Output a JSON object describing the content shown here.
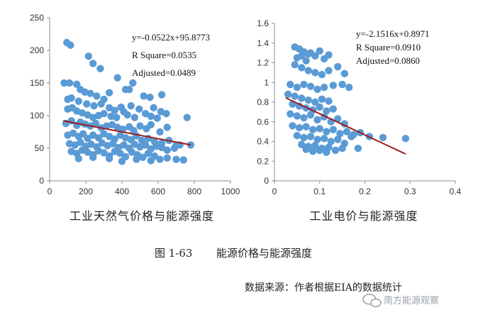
{
  "chart_data": [
    {
      "type": "scatter",
      "title": "工业天然气价格与能源强度",
      "xlim": [
        0,
        1000
      ],
      "ylim": [
        0,
        250
      ],
      "x_ticks": [
        "0",
        "200",
        "400",
        "600",
        "800",
        "1000"
      ],
      "y_ticks": [
        "0",
        "50",
        "100",
        "150",
        "200",
        "250"
      ],
      "point_color": "#5b9bd5",
      "trend_color": "#9c1a1a",
      "trendline": {
        "slope": -0.0522,
        "intercept": 95.8773,
        "x_range": [
          75,
          780
        ]
      },
      "annotation": [
        "y=-0.0522x+95.8773",
        "R Square=0.0535",
        "Adjusted=0.0489"
      ],
      "points": [
        [
          95,
          212
        ],
        [
          115,
          208
        ],
        [
          215,
          191
        ],
        [
          240,
          180
        ],
        [
          280,
          172
        ],
        [
          375,
          158
        ],
        [
          80,
          150
        ],
        [
          110,
          150
        ],
        [
          150,
          148
        ],
        [
          170,
          140
        ],
        [
          195,
          136
        ],
        [
          225,
          134
        ],
        [
          260,
          130
        ],
        [
          300,
          125
        ],
        [
          330,
          135
        ],
        [
          420,
          140
        ],
        [
          440,
          140
        ],
        [
          460,
          150
        ],
        [
          520,
          130
        ],
        [
          555,
          128
        ],
        [
          620,
          132
        ],
        [
          100,
          125
        ],
        [
          120,
          127
        ],
        [
          160,
          122
        ],
        [
          205,
          118
        ],
        [
          245,
          115
        ],
        [
          285,
          118
        ],
        [
          330,
          112
        ],
        [
          360,
          108
        ],
        [
          395,
          113
        ],
        [
          410,
          106
        ],
        [
          450,
          115
        ],
        [
          495,
          110
        ],
        [
          575,
          112
        ],
        [
          615,
          106
        ],
        [
          100,
          110
        ],
        [
          125,
          112
        ],
        [
          150,
          107
        ],
        [
          180,
          104
        ],
        [
          210,
          101
        ],
        [
          240,
          97
        ],
        [
          270,
          100
        ],
        [
          300,
          103
        ],
        [
          340,
          99
        ],
        [
          370,
          97
        ],
        [
          430,
          101
        ],
        [
          470,
          97
        ],
        [
          530,
          103
        ],
        [
          560,
          99
        ],
        [
          595,
          96
        ],
        [
          645,
          103
        ],
        [
          760,
          97
        ],
        [
          90,
          88
        ],
        [
          120,
          92
        ],
        [
          150,
          85
        ],
        [
          170,
          90
        ],
        [
          195,
          87
        ],
        [
          225,
          84
        ],
        [
          255,
          88
        ],
        [
          285,
          81
        ],
        [
          315,
          84
        ],
        [
          345,
          86
        ],
        [
          375,
          82
        ],
        [
          405,
          79
        ],
        [
          440,
          83
        ],
        [
          465,
          77
        ],
        [
          500,
          84
        ],
        [
          535,
          80
        ],
        [
          560,
          86
        ],
        [
          610,
          75
        ],
        [
          650,
          82
        ],
        [
          100,
          70
        ],
        [
          130,
          73
        ],
        [
          160,
          68
        ],
        [
          185,
          72
        ],
        [
          210,
          65
        ],
        [
          240,
          70
        ],
        [
          270,
          66
        ],
        [
          300,
          72
        ],
        [
          330,
          68
        ],
        [
          360,
          64
        ],
        [
          390,
          70
        ],
        [
          420,
          66
        ],
        [
          450,
          63
        ],
        [
          480,
          69
        ],
        [
          510,
          62
        ],
        [
          545,
          65
        ],
        [
          580,
          60
        ],
        [
          620,
          58
        ],
        [
          660,
          62
        ],
        [
          700,
          55
        ],
        [
          780,
          55
        ],
        [
          110,
          57
        ],
        [
          140,
          55
        ],
        [
          170,
          59
        ],
        [
          200,
          53
        ],
        [
          230,
          56
        ],
        [
          260,
          52
        ],
        [
          290,
          58
        ],
        [
          320,
          54
        ],
        [
          350,
          57
        ],
        [
          380,
          51
        ],
        [
          410,
          55
        ],
        [
          440,
          50
        ],
        [
          470,
          56
        ],
        [
          500,
          52
        ],
        [
          530,
          55
        ],
        [
          560,
          49
        ],
        [
          590,
          53
        ],
        [
          620,
          51
        ],
        [
          650,
          47
        ],
        [
          690,
          50
        ],
        [
          720,
          55
        ],
        [
          120,
          45
        ],
        [
          150,
          42
        ],
        [
          180,
          47
        ],
        [
          210,
          44
        ],
        [
          240,
          40
        ],
        [
          270,
          46
        ],
        [
          300,
          43
        ],
        [
          330,
          38
        ],
        [
          360,
          45
        ],
        [
          390,
          42
        ],
        [
          420,
          37
        ],
        [
          455,
          44
        ],
        [
          485,
          40
        ],
        [
          515,
          36
        ],
        [
          545,
          42
        ],
        [
          580,
          38
        ],
        [
          610,
          33
        ],
        [
          650,
          35
        ],
        [
          700,
          33
        ],
        [
          740,
          32
        ],
        [
          160,
          34
        ],
        [
          240,
          36
        ],
        [
          330,
          34
        ],
        [
          400,
          30
        ],
        [
          480,
          33
        ],
        [
          560,
          31
        ]
      ]
    },
    {
      "type": "scatter",
      "title": "工业电价与能源强度",
      "xlim": [
        0,
        0.4
      ],
      "ylim": [
        0,
        1.6
      ],
      "x_ticks": [
        "0",
        "0.1",
        "0.2",
        "0.3",
        "0.4"
      ],
      "y_ticks": [
        "0",
        "0.2",
        "0.4",
        "0.6",
        "0.8",
        "1",
        "1.2",
        "1.4",
        "1.6"
      ],
      "point_color": "#5b9bd5",
      "trend_color": "#9c1a1a",
      "trendline": {
        "slope": -2.1516,
        "intercept": 0.8971,
        "x_range": [
          0.025,
          0.29
        ]
      },
      "annotation": [
        "y=-2.1516x+0.8971",
        "R Square=0.0910",
        "Adjusted=0.0860"
      ],
      "points": [
        [
          0.045,
          1.36
        ],
        [
          0.055,
          1.34
        ],
        [
          0.065,
          1.31
        ],
        [
          0.075,
          1.29
        ],
        [
          0.05,
          1.25
        ],
        [
          0.06,
          1.27
        ],
        [
          0.07,
          1.22
        ],
        [
          0.08,
          1.3
        ],
        [
          0.09,
          1.27
        ],
        [
          0.1,
          1.32
        ],
        [
          0.11,
          1.24
        ],
        [
          0.12,
          1.28
        ],
        [
          0.045,
          1.18
        ],
        [
          0.06,
          1.15
        ],
        [
          0.075,
          1.12
        ],
        [
          0.09,
          1.1
        ],
        [
          0.105,
          1.08
        ],
        [
          0.12,
          1.12
        ],
        [
          0.14,
          1.16
        ],
        [
          0.155,
          1.09
        ],
        [
          0.035,
          0.98
        ],
        [
          0.05,
          0.95
        ],
        [
          0.065,
          0.98
        ],
        [
          0.08,
          0.96
        ],
        [
          0.095,
          0.93
        ],
        [
          0.11,
          0.95
        ],
        [
          0.13,
          0.97
        ],
        [
          0.15,
          0.98
        ],
        [
          0.165,
          0.95
        ],
        [
          0.03,
          0.88
        ],
        [
          0.045,
          0.86
        ],
        [
          0.06,
          0.84
        ],
        [
          0.075,
          0.82
        ],
        [
          0.09,
          0.8
        ],
        [
          0.105,
          0.83
        ],
        [
          0.12,
          0.81
        ],
        [
          0.04,
          0.78
        ],
        [
          0.055,
          0.76
        ],
        [
          0.07,
          0.74
        ],
        [
          0.085,
          0.72
        ],
        [
          0.1,
          0.75
        ],
        [
          0.115,
          0.71
        ],
        [
          0.13,
          0.73
        ],
        [
          0.035,
          0.68
        ],
        [
          0.05,
          0.66
        ],
        [
          0.065,
          0.64
        ],
        [
          0.08,
          0.67
        ],
        [
          0.095,
          0.62
        ],
        [
          0.11,
          0.65
        ],
        [
          0.125,
          0.6
        ],
        [
          0.14,
          0.63
        ],
        [
          0.155,
          0.58
        ],
        [
          0.04,
          0.56
        ],
        [
          0.055,
          0.54
        ],
        [
          0.07,
          0.55
        ],
        [
          0.085,
          0.52
        ],
        [
          0.1,
          0.53
        ],
        [
          0.115,
          0.5
        ],
        [
          0.13,
          0.52
        ],
        [
          0.145,
          0.48
        ],
        [
          0.16,
          0.5
        ],
        [
          0.175,
          0.47
        ],
        [
          0.19,
          0.49
        ],
        [
          0.05,
          0.46
        ],
        [
          0.065,
          0.44
        ],
        [
          0.08,
          0.45
        ],
        [
          0.095,
          0.42
        ],
        [
          0.11,
          0.43
        ],
        [
          0.125,
          0.4
        ],
        [
          0.14,
          0.42
        ],
        [
          0.155,
          0.38
        ],
        [
          0.17,
          0.45
        ],
        [
          0.21,
          0.45
        ],
        [
          0.24,
          0.44
        ],
        [
          0.29,
          0.43
        ],
        [
          0.06,
          0.37
        ],
        [
          0.075,
          0.35
        ],
        [
          0.09,
          0.36
        ],
        [
          0.105,
          0.33
        ],
        [
          0.12,
          0.34
        ],
        [
          0.135,
          0.31
        ],
        [
          0.15,
          0.33
        ],
        [
          0.07,
          0.32
        ],
        [
          0.085,
          0.3
        ],
        [
          0.1,
          0.31
        ],
        [
          0.115,
          0.29
        ],
        [
          0.185,
          0.33
        ]
      ]
    }
  ],
  "caption": {
    "figure_no": "图 1-63",
    "title": "能源价格与能源强度"
  },
  "source": "数据来源：作者根据EIA的数据统计",
  "watermark": "南方能源观察"
}
